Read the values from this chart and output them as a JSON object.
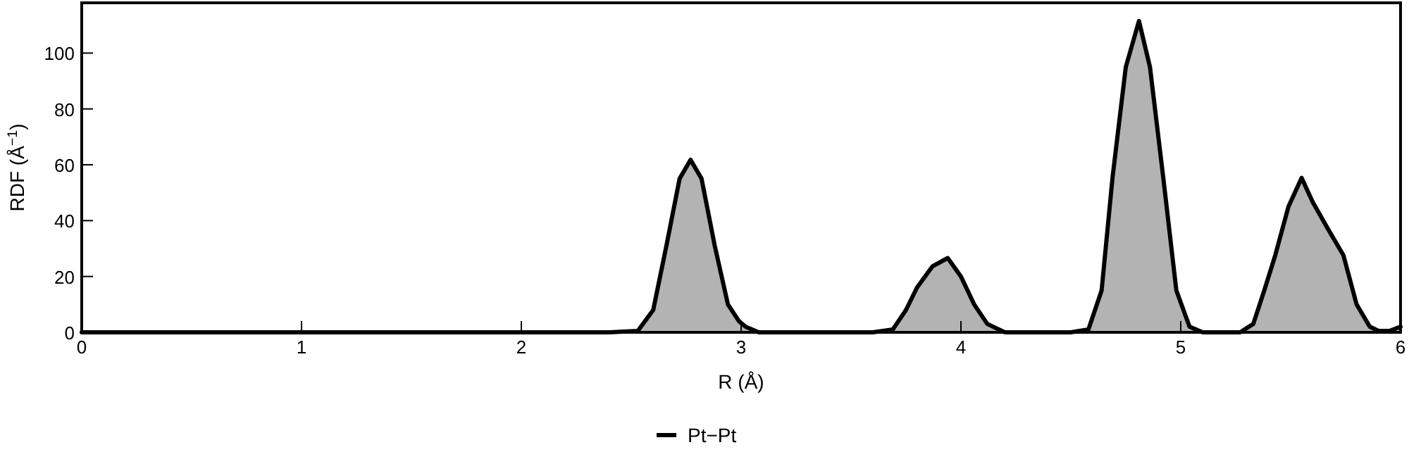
{
  "chart_data": {
    "type": "area",
    "xlabel": "R (Å)",
    "ylabel": "RDF (Å$^{−1}$)",
    "xlim": [
      0,
      6
    ],
    "ylim": [
      0,
      118
    ],
    "xticks": [
      0,
      1,
      2,
      3,
      4,
      5,
      6
    ],
    "yticks": [
      0,
      20,
      40,
      60,
      80,
      100
    ],
    "grid": false,
    "legend": "bottom",
    "series": [
      {
        "name": "Pt−Pt",
        "color": "#000000",
        "x": [
          0,
          2.4,
          2.53,
          2.6,
          2.66,
          2.72,
          2.77,
          2.82,
          2.88,
          2.94,
          2.99,
          3.02,
          3.08,
          3.6,
          3.69,
          3.75,
          3.8,
          3.87,
          3.94,
          4.0,
          4.06,
          4.12,
          4.2,
          4.5,
          4.58,
          4.64,
          4.69,
          4.75,
          4.81,
          4.86,
          4.92,
          4.98,
          5.04,
          5.1,
          5.27,
          5.33,
          5.38,
          5.43,
          5.49,
          5.55,
          5.6,
          5.67,
          5.74,
          5.8,
          5.86,
          5.9,
          5.95,
          6
        ],
        "values": [
          0,
          0,
          0.5,
          8,
          31,
          55,
          61.8,
          55,
          31,
          10,
          4,
          2,
          0,
          0,
          1,
          8,
          16,
          23.6,
          26.6,
          20,
          10,
          3,
          0,
          0,
          1,
          15,
          55.7,
          95,
          111.5,
          95,
          55.7,
          15,
          2,
          0,
          0,
          3,
          15,
          27.6,
          45,
          55.3,
          46.7,
          37,
          27.6,
          10,
          2,
          0.5,
          0.5,
          2
        ]
      }
    ]
  }
}
